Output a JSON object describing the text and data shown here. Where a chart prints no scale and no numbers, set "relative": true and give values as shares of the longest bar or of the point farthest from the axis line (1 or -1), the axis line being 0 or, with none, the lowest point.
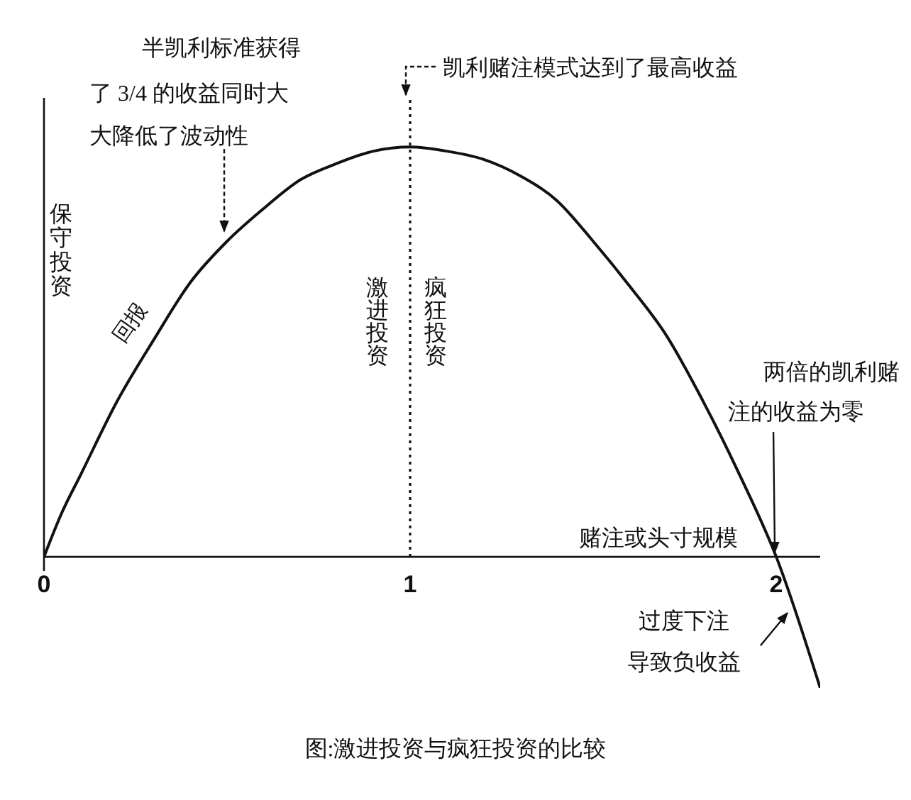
{
  "chart_data": {
    "type": "line",
    "title": "图:激进投资与疯狂投资的比较",
    "xlabel": "赌注或头寸规模",
    "x": [
      0,
      0.05,
      0.1,
      0.2,
      0.3,
      0.4,
      0.5,
      0.6,
      0.7,
      0.8,
      0.9,
      1,
      1.1,
      1.2,
      1.3,
      1.4,
      1.5,
      1.6,
      1.7,
      1.8,
      1.9,
      2,
      2.12
    ],
    "series": [
      {
        "name": "回报",
        "color": "#111111",
        "values": [
          0,
          0.11,
          0.2,
          0.38,
          0.53,
          0.67,
          0.77,
          0.85,
          0.92,
          0.96,
          0.99,
          1,
          0.99,
          0.97,
          0.93,
          0.87,
          0.77,
          0.66,
          0.54,
          0.38,
          0.2,
          0,
          -0.32
        ]
      }
    ],
    "relative": true,
    "xlim": [
      0,
      2.12
    ],
    "xticks": [
      0,
      1,
      2
    ],
    "marker": "none",
    "line_style": "solid",
    "ref_lines": [
      {
        "axis": "x",
        "value": 1,
        "label": "凯利赌注模式达到了最高收益",
        "line_style": "dotted"
      }
    ],
    "annotations": [
      {
        "text": "半凯利标准获得了 3/4 的收益同时大大降低了波动性",
        "x": 0.5,
        "y": 0.77
      },
      "保守投资",
      "激进投资",
      "疯狂投资",
      {
        "text": "两倍的凯利赌注的收益为零",
        "x": 2,
        "y": 0
      },
      {
        "text": "过度下注导致负收益",
        "x": 2.05,
        "y": -0.13
      }
    ]
  }
}
